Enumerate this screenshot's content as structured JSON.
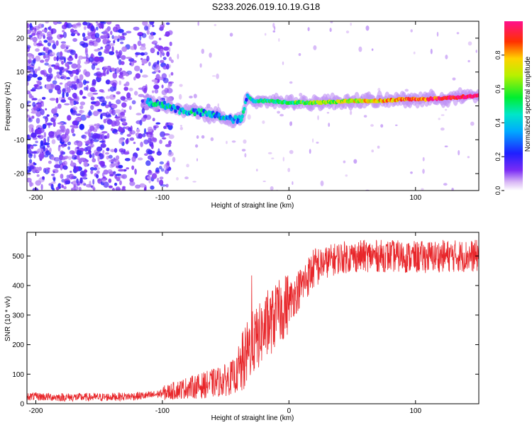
{
  "title": "S233.2026.019.10.19.G18",
  "colors": {
    "snr_line": "#e8262a",
    "axis": "#000000"
  },
  "chart_data": [
    {
      "type": "heatmap",
      "name": "spectrogram",
      "xlabel": "Height of straight line (km)",
      "ylabel": "Frequency (Hz)",
      "xlim": [
        -207,
        150
      ],
      "ylim": [
        -25,
        25
      ],
      "xticks": [
        -200,
        -100,
        0,
        100
      ],
      "yticks": [
        -20,
        -10,
        0,
        10,
        20
      ],
      "colorbar": {
        "label": "Normalized spectral amplitude",
        "range": [
          0,
          1
        ],
        "ticks": [
          0.0,
          0.2,
          0.4,
          0.6,
          0.8
        ]
      },
      "ridge": [
        {
          "x": -110,
          "f": 1
        },
        {
          "x": -95,
          "f": 0
        },
        {
          "x": -85,
          "f": -1.5
        },
        {
          "x": -70,
          "f": -2
        },
        {
          "x": -55,
          "f": -3
        },
        {
          "x": -45,
          "f": -4
        },
        {
          "x": -37,
          "f": -4
        },
        {
          "x": -33,
          "f": 3
        },
        {
          "x": -28,
          "f": 1.5
        },
        {
          "x": -15,
          "f": 1.5
        },
        {
          "x": 0,
          "f": 1
        },
        {
          "x": 25,
          "f": 1
        },
        {
          "x": 50,
          "f": 1.5
        },
        {
          "x": 75,
          "f": 1.5
        },
        {
          "x": 90,
          "f": 2
        },
        {
          "x": 110,
          "f": 2
        },
        {
          "x": 130,
          "f": 2.5
        },
        {
          "x": 150,
          "f": 3
        }
      ]
    },
    {
      "type": "line",
      "name": "snr",
      "xlabel": "Height of straight line (km)",
      "ylabel": "SNR (10 * v/v)",
      "xlim": [
        -207,
        150
      ],
      "ylim": [
        0,
        580
      ],
      "xticks": [
        -200,
        -100,
        0,
        100
      ],
      "yticks": [
        0,
        100,
        200,
        300,
        400,
        500
      ],
      "series": [
        {
          "name": "SNR",
          "x": [
            -207,
            -180,
            -150,
            -125,
            -110,
            -100,
            -90,
            -80,
            -70,
            -60,
            -50,
            -40,
            -35,
            -30,
            -25,
            -20,
            -15,
            -10,
            -5,
            0,
            5,
            10,
            15,
            20,
            30,
            40,
            60,
            80,
            100,
            120,
            150
          ],
          "y": [
            25,
            22,
            22,
            25,
            28,
            35,
            45,
            55,
            60,
            70,
            80,
            100,
            150,
            200,
            220,
            250,
            270,
            300,
            320,
            345,
            370,
            400,
            430,
            460,
            480,
            495,
            500,
            500,
            495,
            500,
            500
          ]
        }
      ]
    }
  ]
}
